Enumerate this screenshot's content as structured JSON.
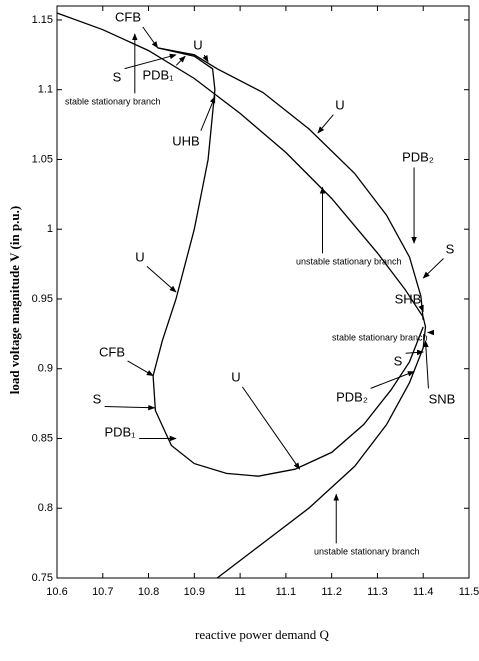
{
  "chart_data": {
    "type": "line",
    "xlabel": "reactive power demand Q",
    "ylabel": "load voltage magnitude V (in p.u.)",
    "xlim": [
      10.6,
      11.5
    ],
    "ylim": [
      0.75,
      1.16
    ],
    "xticks": [
      10.6,
      10.7,
      10.8,
      10.9,
      11,
      11.1,
      11.2,
      11.3,
      11.4,
      11.5
    ],
    "yticks": [
      0.75,
      0.8,
      0.85,
      0.9,
      0.95,
      1,
      1.05,
      1.1,
      1.15
    ],
    "series": [
      {
        "color": "#000000",
        "x": [
          10.6,
          10.7,
          10.8,
          10.9,
          11.0,
          11.1,
          11.2,
          11.3,
          11.36,
          11.4,
          11.405,
          11.4,
          11.37,
          11.32,
          11.25,
          11.15,
          11.05,
          10.95
        ],
        "y": [
          1.155,
          1.143,
          1.128,
          1.108,
          1.083,
          1.055,
          1.022,
          0.983,
          0.957,
          0.937,
          0.93,
          0.915,
          0.89,
          0.86,
          0.83,
          0.8,
          0.775,
          0.75
        ]
      },
      {
        "color": "#000000",
        "x": [
          10.82,
          10.9,
          10.95,
          11.05,
          11.15,
          11.25,
          11.32,
          11.37,
          11.395,
          11.4
        ],
        "y": [
          1.13,
          1.125,
          1.115,
          1.098,
          1.072,
          1.04,
          1.01,
          0.98,
          0.952,
          0.935
        ]
      },
      {
        "color": "#000000",
        "x": [
          10.82,
          10.9,
          10.94,
          10.945,
          10.93,
          10.9,
          10.86,
          10.83,
          10.81,
          10.815,
          10.85,
          10.9,
          10.97,
          11.04,
          11.12,
          11.2,
          11.27,
          11.33,
          11.37,
          11.4
        ],
        "y": [
          1.13,
          1.124,
          1.115,
          1.1,
          1.05,
          1.0,
          0.95,
          0.92,
          0.895,
          0.87,
          0.845,
          0.832,
          0.825,
          0.823,
          0.828,
          0.84,
          0.86,
          0.885,
          0.905,
          0.93
        ]
      }
    ],
    "annotations": [
      {
        "text": "CFB",
        "x": 10.82,
        "y": 1.13
      },
      {
        "text": "S",
        "x": 10.86,
        "y": 1.125
      },
      {
        "text": "PDB₁",
        "x": 10.88,
        "y": 1.124
      },
      {
        "text": "U",
        "x": 10.93,
        "y": 1.12
      },
      {
        "text": "stable stationary branch",
        "x": 10.77,
        "y": 1.14
      },
      {
        "text": "UHB",
        "x": 10.945,
        "y": 1.095
      },
      {
        "text": "U",
        "x": 11.17,
        "y": 1.069
      },
      {
        "text": "PDB₂",
        "x": 11.38,
        "y": 0.99
      },
      {
        "text": "S",
        "x": 11.4,
        "y": 0.965
      },
      {
        "text": "unstable stationary branch",
        "x": 11.18,
        "y": 1.03
      },
      {
        "text": "U",
        "x": 10.86,
        "y": 0.955
      },
      {
        "text": "SHB",
        "x": 11.4,
        "y": 0.941
      },
      {
        "text": "stable stationary branch",
        "x": 11.41,
        "y": 0.926
      },
      {
        "text": "S",
        "x": 11.4,
        "y": 0.912
      },
      {
        "text": "PDB₂",
        "x": 11.38,
        "y": 0.898
      },
      {
        "text": "SNB",
        "x": 11.405,
        "y": 0.92
      },
      {
        "text": "CFB",
        "x": 10.81,
        "y": 0.895
      },
      {
        "text": "S",
        "x": 10.813,
        "y": 0.872
      },
      {
        "text": "PDB₁",
        "x": 10.86,
        "y": 0.85
      },
      {
        "text": "U",
        "x": 11.13,
        "y": 0.828
      },
      {
        "text": "unstable stationary branch",
        "x": 11.21,
        "y": 0.81
      }
    ]
  }
}
